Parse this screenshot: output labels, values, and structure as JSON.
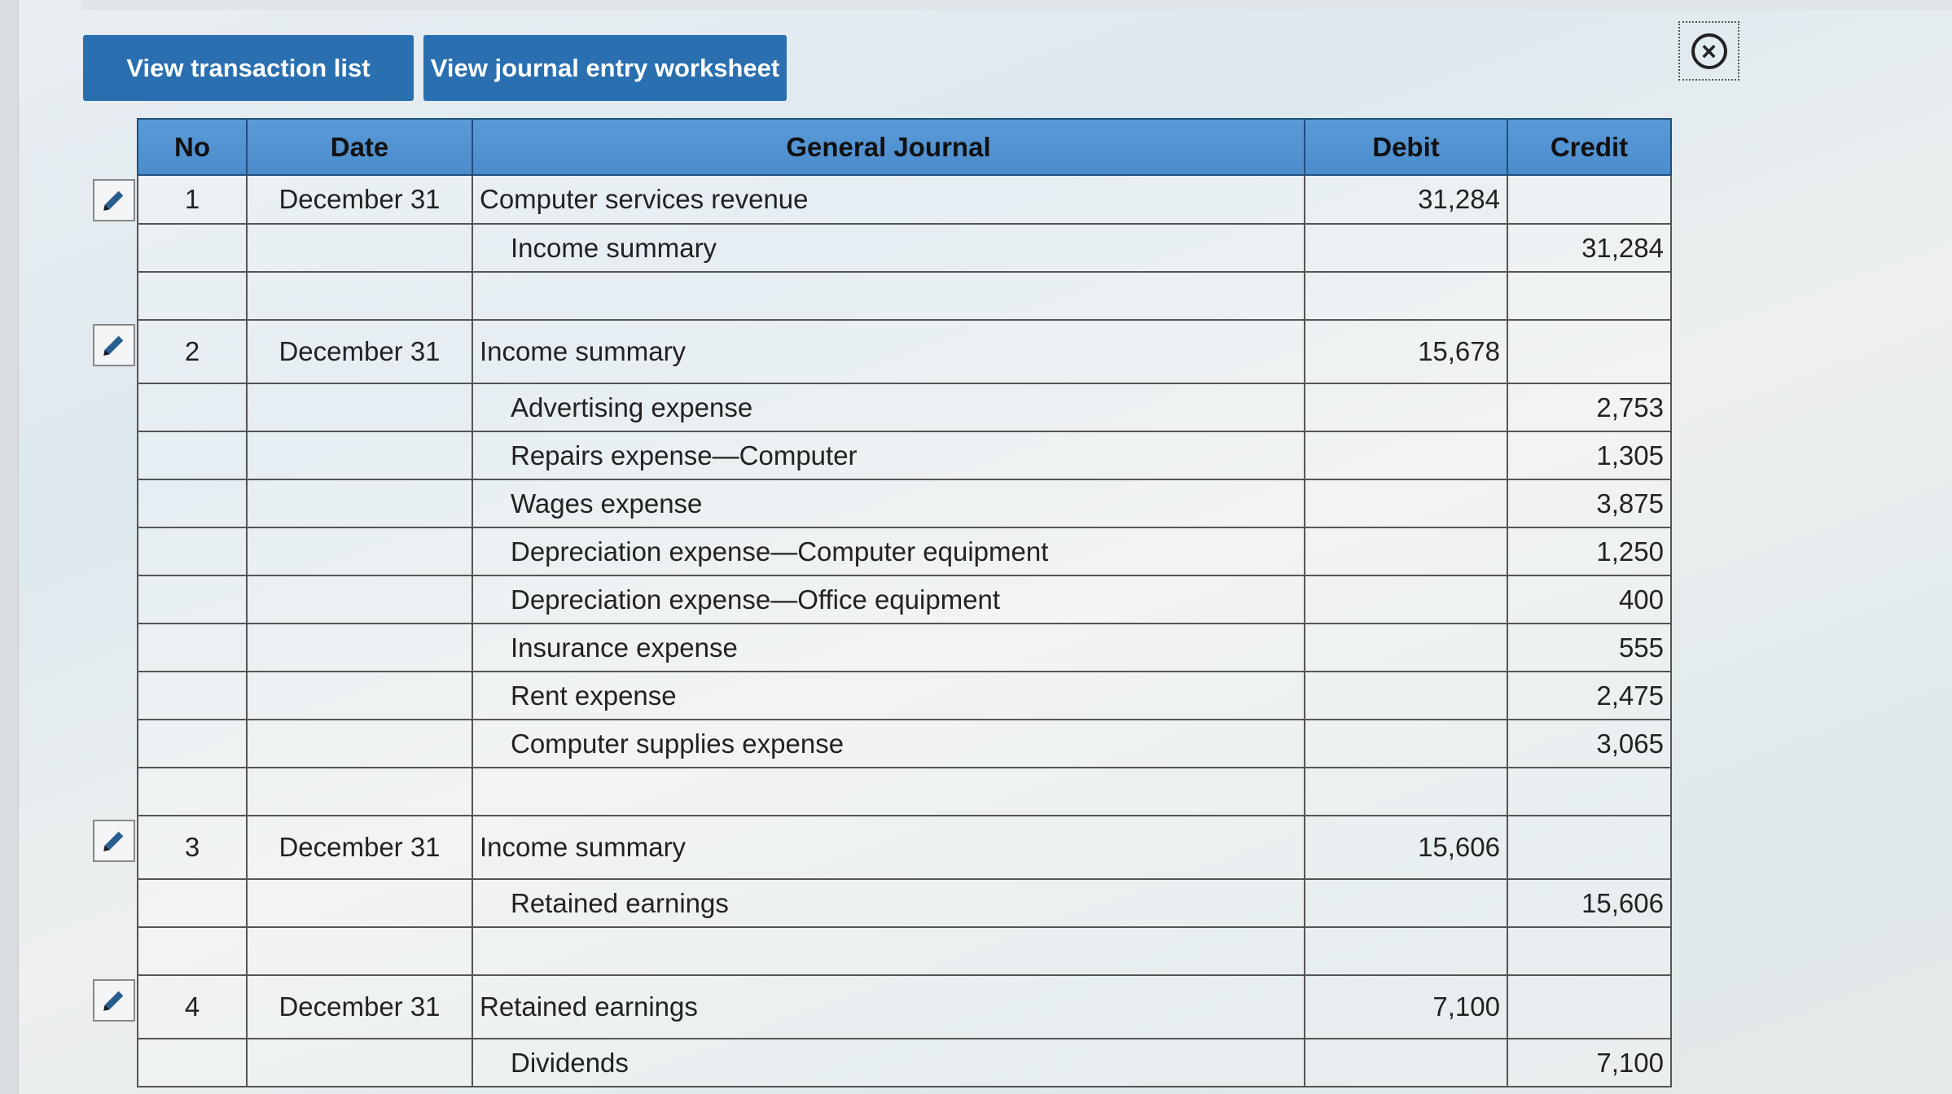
{
  "toolbar": {
    "view_transaction_list": "View transaction list",
    "view_journal_entry_worksheet": "View journal entry worksheet"
  },
  "close_icon": "×",
  "table": {
    "headers": [
      "No",
      "Date",
      "General Journal",
      "Debit",
      "Credit"
    ],
    "rows": [
      {
        "no": "1",
        "date": "December 31",
        "account": "Computer services revenue",
        "debit": "31,284",
        "credit": "",
        "indent": false,
        "edit": true
      },
      {
        "no": "",
        "date": "",
        "account": "Income summary",
        "debit": "",
        "credit": "31,284",
        "indent": true,
        "edit": false
      },
      {
        "no": "",
        "date": "",
        "account": "",
        "debit": "",
        "credit": "",
        "indent": false,
        "edit": false
      },
      {
        "no": "2",
        "date": "December 31",
        "account": "Income summary",
        "debit": "15,678",
        "credit": "",
        "indent": false,
        "edit": true
      },
      {
        "no": "",
        "date": "",
        "account": "Advertising expense",
        "debit": "",
        "credit": "2,753",
        "indent": true,
        "edit": false
      },
      {
        "no": "",
        "date": "",
        "account": "Repairs expense—Computer",
        "debit": "",
        "credit": "1,305",
        "indent": true,
        "edit": false
      },
      {
        "no": "",
        "date": "",
        "account": "Wages expense",
        "debit": "",
        "credit": "3,875",
        "indent": true,
        "edit": false
      },
      {
        "no": "",
        "date": "",
        "account": "Depreciation expense—Computer equipment",
        "debit": "",
        "credit": "1,250",
        "indent": true,
        "edit": false
      },
      {
        "no": "",
        "date": "",
        "account": "Depreciation expense—Office equipment",
        "debit": "",
        "credit": "400",
        "indent": true,
        "edit": false
      },
      {
        "no": "",
        "date": "",
        "account": "Insurance expense",
        "debit": "",
        "credit": "555",
        "indent": true,
        "edit": false
      },
      {
        "no": "",
        "date": "",
        "account": "Rent expense",
        "debit": "",
        "credit": "2,475",
        "indent": true,
        "edit": false
      },
      {
        "no": "",
        "date": "",
        "account": "Computer supplies expense",
        "debit": "",
        "credit": "3,065",
        "indent": true,
        "edit": false
      },
      {
        "no": "",
        "date": "",
        "account": "",
        "debit": "",
        "credit": "",
        "indent": false,
        "edit": false
      },
      {
        "no": "3",
        "date": "December 31",
        "account": "Income summary",
        "debit": "15,606",
        "credit": "",
        "indent": false,
        "edit": true
      },
      {
        "no": "",
        "date": "",
        "account": "Retained earnings",
        "debit": "",
        "credit": "15,606",
        "indent": true,
        "edit": false
      },
      {
        "no": "",
        "date": "",
        "account": "",
        "debit": "",
        "credit": "",
        "indent": false,
        "edit": false
      },
      {
        "no": "4",
        "date": "December 31",
        "account": "Retained earnings",
        "debit": "7,100",
        "credit": "",
        "indent": false,
        "edit": true
      },
      {
        "no": "",
        "date": "",
        "account": "Dividends",
        "debit": "",
        "credit": "7,100",
        "indent": true,
        "edit": false
      }
    ]
  }
}
